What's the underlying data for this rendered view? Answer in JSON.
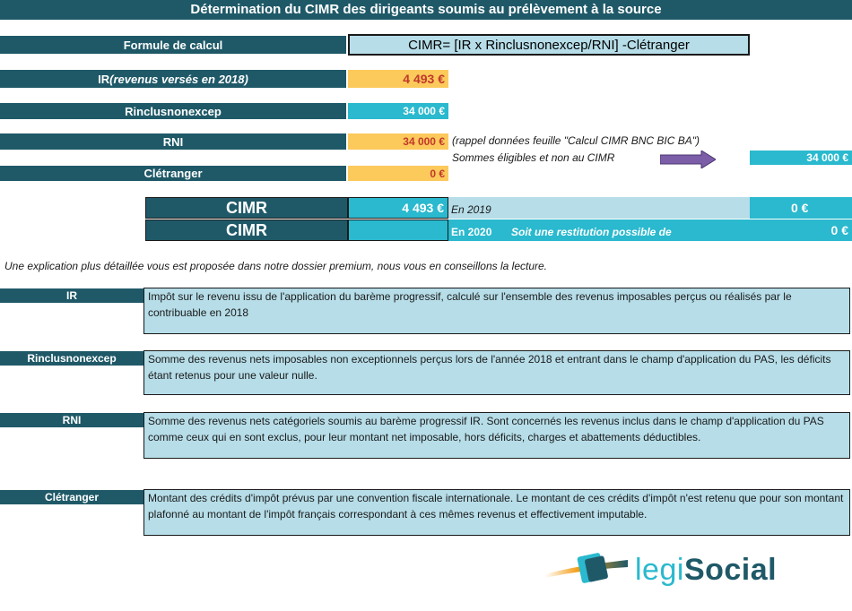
{
  "title": "Détermination du CIMR des dirigeants soumis au prélèvement à la source",
  "formula": {
    "label": "Formule de calcul",
    "value": "CIMR= [IR x Rinclusnonexcep/RNI] -Clétranger"
  },
  "ir": {
    "label_main": "IR ",
    "label_italic": "(revenus versés en 2018)",
    "value": "4 493 €"
  },
  "rinclus": {
    "label": "Rinclusnonexcep",
    "value": "34 000 €"
  },
  "rni": {
    "label": "RNI",
    "value": "34 000 €",
    "note": "(rappel données feuille \"Calcul CIMR BNC BIC BA\")"
  },
  "eligible": {
    "note": "Sommes éligibles et non au CIMR",
    "value": "34 000 €"
  },
  "cletranger": {
    "label": "Clétranger",
    "value": "0 €"
  },
  "cimr_2019": {
    "label": "CIMR",
    "value": "4 493 €",
    "year_label": "En 2019",
    "result": "0 €"
  },
  "cimr_2020": {
    "label": "CIMR",
    "value": "",
    "year_label": "En 2020",
    "restitution_label": "Soit une restitution possible de",
    "result": "0 €"
  },
  "explanation": "Une explication plus détaillée vous est proposée dans notre dossier premium, nous vous en conseillons la lecture.",
  "definitions": [
    {
      "term": "IR",
      "text": "Impôt sur le revenu issu de l'application du barème progressif, calculé sur l'ensemble des revenus imposables perçus ou réalisés par le contribuable en 2018"
    },
    {
      "term": "Rinclusnonexcep",
      "text": "Somme des revenus nets imposables non exceptionnels perçus lors de l'année 2018 et entrant dans le champ d'application du PAS, les déficits étant retenus pour une valeur nulle."
    },
    {
      "term": "RNI",
      "text": "Somme des revenus nets catégoriels soumis au barème progressif IR. Sont concernés les revenus inclus dans le champ d'application du PAS comme ceux qui en sont exclus, pour leur montant net imposable, hors déficits, charges et abattements déductibles."
    },
    {
      "term": "Clétranger",
      "text": "Montant des crédits d'impôt prévus par une convention fiscale internationale. Le montant de ces crédits d'impôt n'est retenu que pour son montant plafonné au montant de l'impôt français correspondant à ces mêmes revenus et effectivement imputable."
    }
  ],
  "logo": {
    "part1": "legi",
    "part2": "Social"
  },
  "colors": {
    "dark": "#1f5968",
    "teal": "#2ab9ce",
    "yellow": "#fcc95b",
    "light_blue": "#b6dde8",
    "arrow": "#7b5ea7"
  }
}
